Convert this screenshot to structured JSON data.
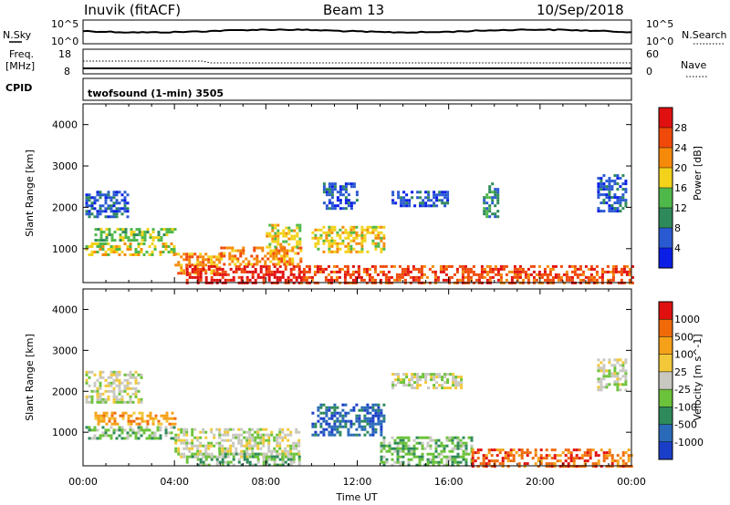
{
  "header": {
    "station": "Inuvik (fitACF)",
    "beam": "Beam 13",
    "date": "10/Sep/2018"
  },
  "top_panels": {
    "nsky_label": "N.Sky",
    "nsearch_label": "N.Search",
    "nsky_ticks": [
      "10^5",
      "10^0"
    ],
    "nsearch_ticks": [
      "10^5",
      "10^0"
    ],
    "freq_label": "Freq.",
    "freq_unit": "[MHz]",
    "freq_ticks": [
      "18",
      "8"
    ],
    "nave_label": "Nave",
    "nave_ticks": [
      "60",
      "0"
    ],
    "cpid_label": "CPID",
    "cpid_text": "twofsound (1-min) 3505"
  },
  "chart_data": [
    {
      "type": "heatmap",
      "name": "power",
      "ylabel": "Slant Range [km]",
      "y_ticks": [
        1000,
        2000,
        3000,
        4000
      ],
      "ylim": [
        180,
        4500
      ],
      "xlim": [
        0,
        24
      ],
      "colorbar_label": "Power [dB]",
      "colorbar_ticks": [
        "4",
        "8",
        "12",
        "16",
        "20",
        "24",
        "28"
      ],
      "colorbar_colors": [
        "#0a1ee6",
        "#2a5ad2",
        "#2e8a5a",
        "#4fb84a",
        "#f2d21a",
        "#f58a0a",
        "#f04a0a",
        "#e01010"
      ],
      "regions": [
        {
          "t": [
            0.1,
            4.0
          ],
          "r": [
            850,
            1150
          ],
          "level": 4
        },
        {
          "t": [
            0.5,
            4.0
          ],
          "r": [
            1200,
            1500
          ],
          "level": 3
        },
        {
          "t": [
            4.0,
            6.0
          ],
          "r": [
            400,
            900
          ],
          "level": 5
        },
        {
          "t": [
            4.5,
            9.5
          ],
          "r": [
            180,
            600
          ],
          "level": 7
        },
        {
          "t": [
            6.0,
            9.5
          ],
          "r": [
            600,
            1050
          ],
          "level": 5
        },
        {
          "t": [
            8.0,
            9.5
          ],
          "r": [
            1050,
            1600
          ],
          "level": 4
        },
        {
          "t": [
            10.0,
            13.2
          ],
          "r": [
            900,
            1550
          ],
          "level": 4
        },
        {
          "t": [
            9.5,
            24.0
          ],
          "r": [
            180,
            600
          ],
          "level": 6
        },
        {
          "t": [
            0.1,
            2.0
          ],
          "r": [
            1800,
            2400
          ],
          "level": 1
        },
        {
          "t": [
            10.5,
            12.0
          ],
          "r": [
            2000,
            2600
          ],
          "level": 1
        },
        {
          "t": [
            13.5,
            16.0
          ],
          "r": [
            2050,
            2400
          ],
          "level": 1
        },
        {
          "t": [
            17.5,
            18.2
          ],
          "r": [
            1800,
            2600
          ],
          "level": 2
        },
        {
          "t": [
            22.5,
            23.8
          ],
          "r": [
            1900,
            2800
          ],
          "level": 1
        }
      ],
      "fill_rate": 0.55
    },
    {
      "type": "heatmap",
      "name": "velocity",
      "ylabel": "Slant Range [km]",
      "y_ticks": [
        1000,
        2000,
        3000,
        4000
      ],
      "ylim": [
        180,
        4500
      ],
      "xlim": [
        0,
        24
      ],
      "x_ticks": [
        "00:00",
        "04:00",
        "08:00",
        "12:00",
        "16:00",
        "20:00",
        "00:00"
      ],
      "xlabel": "Time UT",
      "colorbar_label": "Velocity [m s^-1]",
      "colorbar_ticks": [
        "1000",
        "500",
        "100",
        "25",
        "-25",
        "-100",
        "-500",
        "-1000"
      ],
      "colorbar_colors": [
        "#1a3ec8",
        "#2a6ab8",
        "#2e8a5a",
        "#6cc23a",
        "#c8c8c0",
        "#f2c83a",
        "#f5a21a",
        "#f06a0a",
        "#e01010"
      ],
      "ground_scatter_color": "#c8c8c0",
      "regions": [
        {
          "t": [
            0.1,
            4.0
          ],
          "r": [
            850,
            1150
          ],
          "level": 3
        },
        {
          "t": [
            0.5,
            4.0
          ],
          "r": [
            1200,
            1500
          ],
          "level": 6
        },
        {
          "t": [
            4.0,
            9.5
          ],
          "r": [
            400,
            1100
          ],
          "level": 4
        },
        {
          "t": [
            4.5,
            9.5
          ],
          "r": [
            180,
            500
          ],
          "level": 3
        },
        {
          "t": [
            10.0,
            13.2
          ],
          "r": [
            900,
            1700
          ],
          "level": 1
        },
        {
          "t": [
            13.0,
            17.0
          ],
          "r": [
            200,
            900
          ],
          "level": 3
        },
        {
          "t": [
            17.0,
            24.0
          ],
          "r": [
            180,
            600
          ],
          "level": 7
        },
        {
          "t": [
            0.1,
            2.5
          ],
          "r": [
            1700,
            2500
          ],
          "level": 4
        },
        {
          "t": [
            13.5,
            16.5
          ],
          "r": [
            2050,
            2450
          ],
          "level": 4
        },
        {
          "t": [
            22.5,
            23.8
          ],
          "r": [
            2000,
            2800
          ],
          "level": 4
        }
      ],
      "fill_rate": 0.55
    }
  ]
}
